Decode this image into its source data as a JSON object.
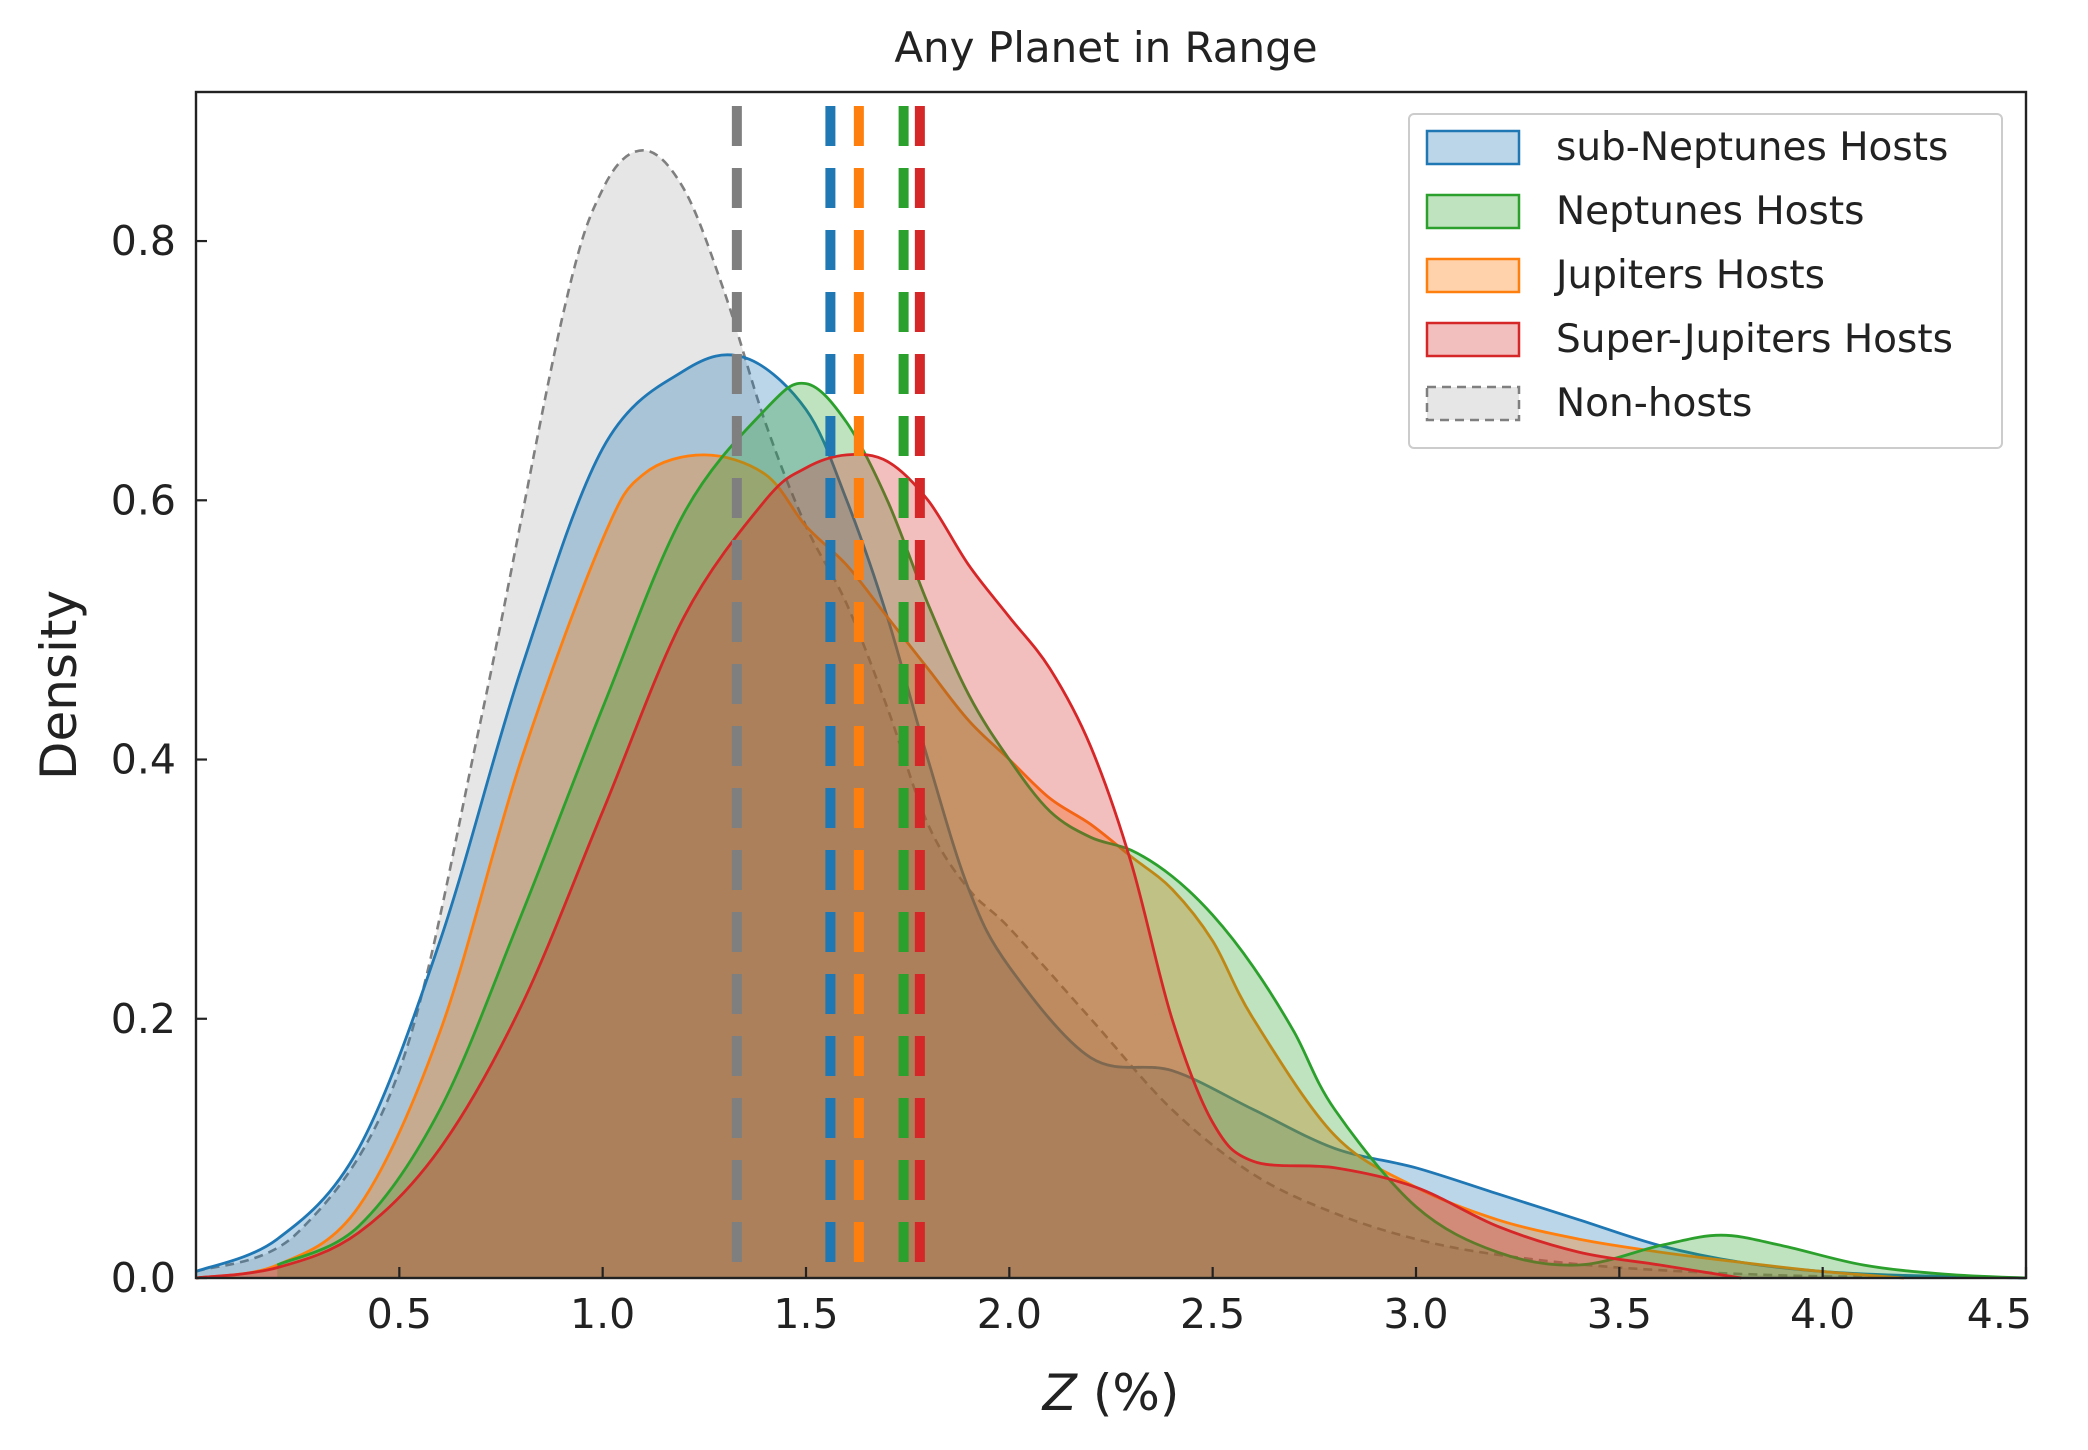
{
  "chart_data": {
    "type": "area",
    "title": "Any Planet in Range",
    "xlabel_var": "Z",
    "xlabel_unit": " (%)",
    "ylabel": "Density",
    "xlim": [
      0.0,
      4.5
    ],
    "ylim": [
      0.0,
      0.915
    ],
    "x_ticks": [
      0.5,
      1.0,
      1.5,
      2.0,
      2.5,
      3.0,
      3.5,
      4.0,
      4.5
    ],
    "x_tick_labels": [
      "0.5",
      "1.0",
      "1.5",
      "2.0",
      "2.5",
      "3.0",
      "3.5",
      "4.0",
      "4.5"
    ],
    "y_ticks": [
      0.0,
      0.2,
      0.4,
      0.6,
      0.8
    ],
    "y_tick_labels": [
      "0.0",
      "0.2",
      "0.4",
      "0.6",
      "0.8"
    ],
    "grid": false,
    "legend_position": "top-right",
    "series": [
      {
        "name": "Non-hosts",
        "color": "#7f7f7f",
        "fill": "#d9d9d9",
        "fill_opacity": 0.65,
        "dashed": true,
        "median": 1.33,
        "x": [
          0.0,
          0.25,
          0.5,
          0.7,
          0.9,
          1.0,
          1.1,
          1.2,
          1.3,
          1.4,
          1.5,
          1.6,
          1.7,
          1.8,
          1.9,
          2.0,
          2.2,
          2.4,
          2.6,
          2.8,
          3.0,
          3.2,
          3.5,
          3.9,
          4.2,
          4.5
        ],
        "y": [
          0.005,
          0.035,
          0.16,
          0.43,
          0.74,
          0.84,
          0.87,
          0.84,
          0.76,
          0.66,
          0.58,
          0.52,
          0.44,
          0.35,
          0.3,
          0.27,
          0.2,
          0.13,
          0.08,
          0.05,
          0.03,
          0.018,
          0.008,
          0.002,
          0.001,
          0.0
        ]
      },
      {
        "name": "sub-Neptunes Hosts",
        "color": "#1f77b4",
        "fill": "#1f77b4",
        "fill_opacity": 0.3,
        "dashed": false,
        "median": 1.56,
        "x": [
          0.0,
          0.2,
          0.4,
          0.6,
          0.8,
          1.0,
          1.2,
          1.35,
          1.5,
          1.6,
          1.7,
          1.8,
          1.9,
          2.0,
          2.2,
          2.4,
          2.6,
          2.8,
          3.0,
          3.2,
          3.4,
          3.6,
          3.8,
          4.0,
          4.2,
          4.5
        ],
        "y": [
          0.005,
          0.03,
          0.1,
          0.26,
          0.47,
          0.64,
          0.7,
          0.71,
          0.67,
          0.6,
          0.51,
          0.4,
          0.3,
          0.24,
          0.17,
          0.16,
          0.13,
          0.1,
          0.085,
          0.065,
          0.045,
          0.025,
          0.012,
          0.005,
          0.002,
          0.0
        ]
      },
      {
        "name": "Jupiters Hosts",
        "color": "#ff7f0e",
        "fill": "#ff7f0e",
        "fill_opacity": 0.35,
        "dashed": false,
        "median": 1.63,
        "x": [
          0.0,
          0.2,
          0.4,
          0.6,
          0.8,
          1.0,
          1.1,
          1.25,
          1.4,
          1.5,
          1.6,
          1.7,
          1.8,
          1.9,
          2.0,
          2.1,
          2.2,
          2.3,
          2.4,
          2.5,
          2.6,
          2.8,
          3.0,
          3.2,
          3.4,
          3.6,
          3.8,
          4.0,
          4.2
        ],
        "y": [
          0.0,
          0.01,
          0.055,
          0.19,
          0.4,
          0.57,
          0.62,
          0.635,
          0.62,
          0.58,
          0.55,
          0.51,
          0.47,
          0.43,
          0.4,
          0.37,
          0.35,
          0.325,
          0.3,
          0.26,
          0.2,
          0.11,
          0.07,
          0.045,
          0.03,
          0.02,
          0.012,
          0.005,
          0.0
        ]
      },
      {
        "name": "Neptunes Hosts",
        "color": "#2ca02c",
        "fill": "#2ca02c",
        "fill_opacity": 0.3,
        "dashed": false,
        "median": 1.74,
        "x": [
          0.2,
          0.4,
          0.6,
          0.8,
          1.0,
          1.2,
          1.4,
          1.5,
          1.6,
          1.7,
          1.8,
          1.9,
          2.0,
          2.1,
          2.2,
          2.3,
          2.4,
          2.5,
          2.6,
          2.7,
          2.8,
          3.0,
          3.2,
          3.4,
          3.6,
          3.75,
          3.9,
          4.1,
          4.3,
          4.5
        ],
        "y": [
          0.01,
          0.04,
          0.13,
          0.28,
          0.44,
          0.59,
          0.67,
          0.69,
          0.66,
          0.6,
          0.52,
          0.45,
          0.4,
          0.36,
          0.34,
          0.33,
          0.31,
          0.28,
          0.24,
          0.19,
          0.13,
          0.055,
          0.02,
          0.01,
          0.025,
          0.033,
          0.025,
          0.01,
          0.003,
          0.0
        ]
      },
      {
        "name": "Super-Jupiters Hosts",
        "color": "#d62728",
        "fill": "#d62728",
        "fill_opacity": 0.3,
        "dashed": false,
        "median": 1.78,
        "x": [
          0.0,
          0.2,
          0.4,
          0.6,
          0.8,
          1.0,
          1.2,
          1.4,
          1.5,
          1.6,
          1.7,
          1.8,
          1.9,
          2.0,
          2.1,
          2.2,
          2.3,
          2.4,
          2.5,
          2.6,
          2.8,
          3.0,
          3.2,
          3.4,
          3.6,
          3.8
        ],
        "y": [
          0.0,
          0.008,
          0.035,
          0.1,
          0.21,
          0.36,
          0.51,
          0.6,
          0.625,
          0.635,
          0.63,
          0.6,
          0.55,
          0.51,
          0.47,
          0.41,
          0.32,
          0.2,
          0.12,
          0.09,
          0.085,
          0.07,
          0.04,
          0.02,
          0.01,
          0.0
        ]
      }
    ],
    "legend_order": [
      "sub-Neptunes Hosts",
      "Neptunes Hosts",
      "Jupiters Hosts",
      "Super-Jupiters Hosts",
      "Non-hosts"
    ],
    "median_lines_order": [
      "Non-hosts",
      "sub-Neptunes Hosts",
      "Jupiters Hosts",
      "Neptunes Hosts",
      "Super-Jupiters Hosts"
    ]
  }
}
